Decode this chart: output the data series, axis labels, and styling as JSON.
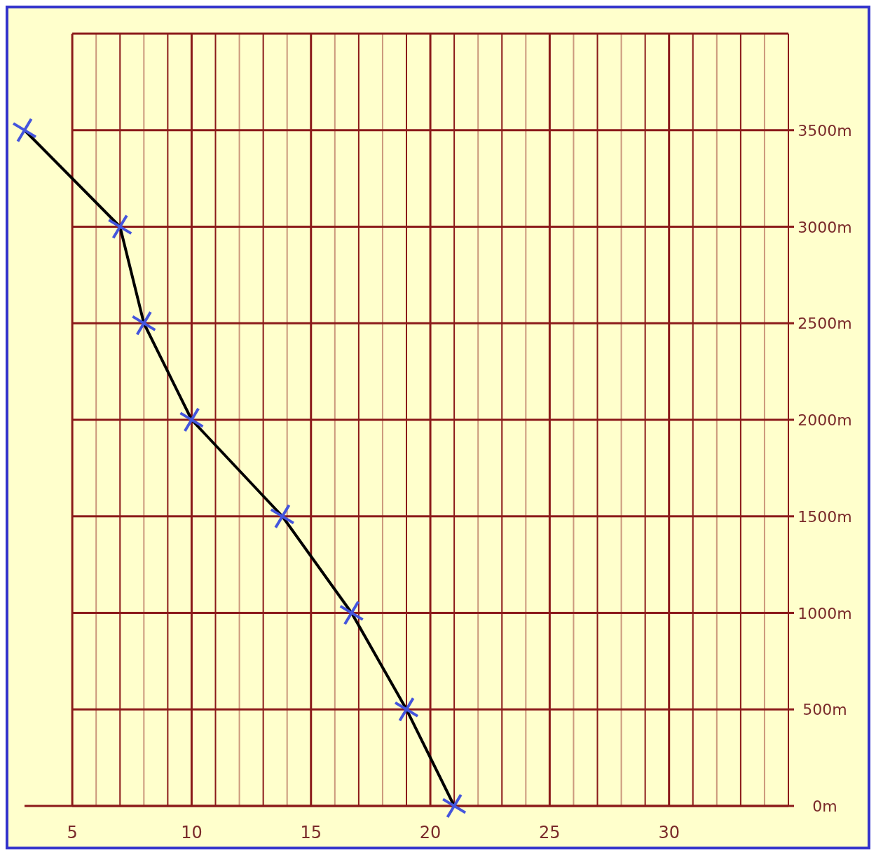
{
  "chart_data": {
    "type": "line",
    "x": [
      3,
      7,
      8,
      10,
      13.8,
      16.7,
      19,
      21
    ],
    "series": [
      {
        "color": "#000000",
        "values": [
          3500,
          3000,
          2500,
          2000,
          1500,
          1000,
          500,
          0
        ]
      }
    ],
    "xlim": [
      3,
      35
    ],
    "xticks": [
      5,
      {
        "value": 6,
        "label": null
      },
      {
        "value": 7,
        "label": null
      },
      {
        "value": 8,
        "label": null
      },
      {
        "value": 9,
        "label": null
      },
      10,
      {
        "value": 11,
        "label": null
      },
      {
        "value": 12,
        "label": null
      },
      {
        "value": 13,
        "label": null
      },
      {
        "value": 14,
        "label": null
      },
      15,
      {
        "value": 16,
        "label": null
      },
      {
        "value": 17,
        "label": null
      },
      {
        "value": 18,
        "label": null
      },
      {
        "value": 19,
        "label": null
      },
      20,
      {
        "value": 21,
        "label": null
      },
      {
        "value": 22,
        "label": null
      },
      {
        "value": 23,
        "label": null
      },
      {
        "value": 24,
        "label": null
      },
      25,
      {
        "value": 26,
        "label": null
      },
      {
        "value": 27,
        "label": null
      },
      {
        "value": 28,
        "label": null
      },
      {
        "value": 29,
        "label": null
      },
      30,
      {
        "value": 31,
        "label": null
      },
      {
        "value": 32,
        "label": null
      },
      {
        "value": 33,
        "label": null
      },
      {
        "value": 34,
        "label": null
      },
      {
        "value": 35,
        "label": null
      }
    ],
    "ylim": [
      0,
      4000
    ],
    "yticks": [
      {
        "value": 0,
        "label": "0m"
      },
      {
        "value": 500,
        "label": "500m"
      },
      {
        "value": 1000,
        "label": "1000m"
      },
      {
        "value": 1500,
        "label": "1500m"
      },
      {
        "value": 2000,
        "label": "2000m"
      },
      {
        "value": 2500,
        "label": "2500m"
      },
      {
        "value": 3000,
        "label": "3000m"
      },
      {
        "value": 3500,
        "label": "3500m"
      }
    ],
    "grid": true,
    "marker": "cross",
    "line_style": "solid"
  }
}
